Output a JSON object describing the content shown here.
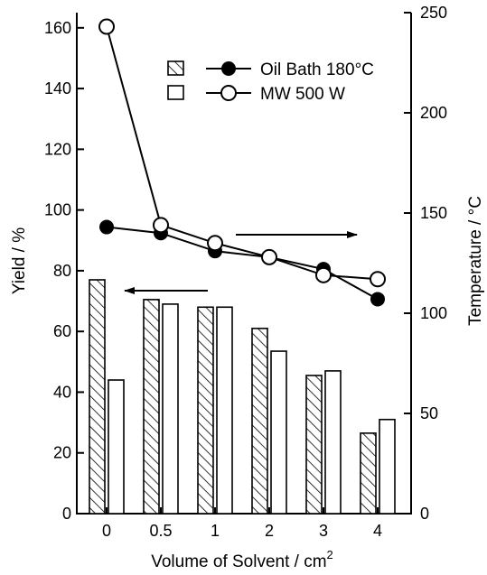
{
  "chart_data": {
    "type": "bar+line",
    "title": "",
    "xlabel": "Volume of Solvent / cm",
    "xlabel_superscript": "2",
    "ylabel_left": "Yield / %",
    "ylabel_right": "Temperature / °C",
    "categories": [
      "0",
      "0.5",
      "1",
      "2",
      "3",
      "4"
    ],
    "ylim_left": [
      0,
      165
    ],
    "yticks_left": [
      "0",
      "20",
      "40",
      "60",
      "80",
      "100",
      "120",
      "140",
      "160"
    ],
    "ylim_right": [
      0,
      250
    ],
    "yticks_right": [
      "0",
      "50",
      "100",
      "150",
      "200",
      "250"
    ],
    "bar_series": [
      {
        "name": "Oil Bath 180°C",
        "fill": "hatched",
        "values": [
          77,
          70.5,
          68,
          61,
          45.5,
          26.5
        ]
      },
      {
        "name": "MW 500 W",
        "fill": "white",
        "values": [
          44,
          69,
          68,
          53.5,
          47,
          31
        ]
      }
    ],
    "line_series": [
      {
        "name": "Oil Bath 180°C",
        "marker": "filled-circle",
        "axis": "right",
        "values": [
          143,
          140,
          131,
          128,
          122,
          107
        ]
      },
      {
        "name": "MW 500 W",
        "marker": "open-circle",
        "axis": "right",
        "values": [
          243,
          144,
          135,
          128,
          119,
          117
        ]
      }
    ],
    "legend": {
      "placement": "top-right",
      "entries": [
        "Oil Bath 180°C",
        "MW 500 W"
      ]
    },
    "annotations": [
      "arrow-left-pointing-to-yield-axis",
      "arrow-right-pointing-to-temperature-axis"
    ],
    "grid": false
  }
}
